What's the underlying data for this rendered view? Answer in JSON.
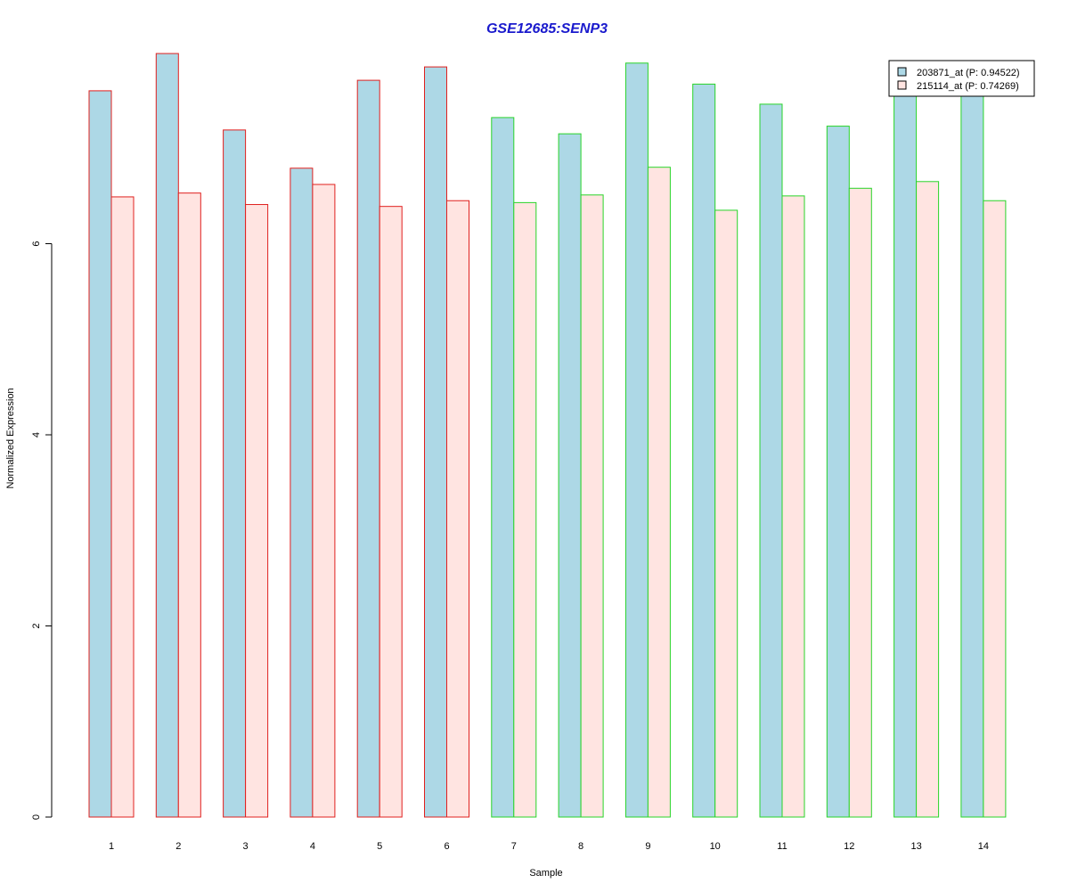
{
  "chart_data": {
    "type": "bar",
    "title": "GSE12685:SENP3",
    "xlabel": "Sample",
    "ylabel": "Normalized Expression",
    "ylim": [
      0,
      8
    ],
    "yticks": [
      0,
      2,
      4,
      6
    ],
    "categories": [
      "1",
      "2",
      "3",
      "4",
      "5",
      "6",
      "7",
      "8",
      "9",
      "10",
      "11",
      "12",
      "13",
      "14"
    ],
    "series": [
      {
        "name": "203871_at (P: 0.94522)",
        "fill": "#add8e6",
        "values": [
          7.6,
          7.99,
          7.19,
          6.79,
          7.71,
          7.85,
          7.32,
          7.15,
          7.89,
          7.67,
          7.46,
          7.23,
          7.55,
          7.55
        ]
      },
      {
        "name": "215114_at (P: 0.74269)",
        "fill": "#ffe4e1",
        "values": [
          6.49,
          6.53,
          6.41,
          6.62,
          6.39,
          6.45,
          6.43,
          6.51,
          6.8,
          6.35,
          6.5,
          6.58,
          6.65,
          6.45
        ]
      }
    ],
    "group_border_colors": [
      "#e0201e",
      "#e0201e",
      "#e0201e",
      "#e0201e",
      "#e0201e",
      "#e0201e",
      "#28d428",
      "#28d428",
      "#28d428",
      "#28d428",
      "#28d428",
      "#28d428",
      "#28d428",
      "#28d428"
    ],
    "title_color": "#1a1acd",
    "grid": false,
    "legend_position": "top-right"
  }
}
